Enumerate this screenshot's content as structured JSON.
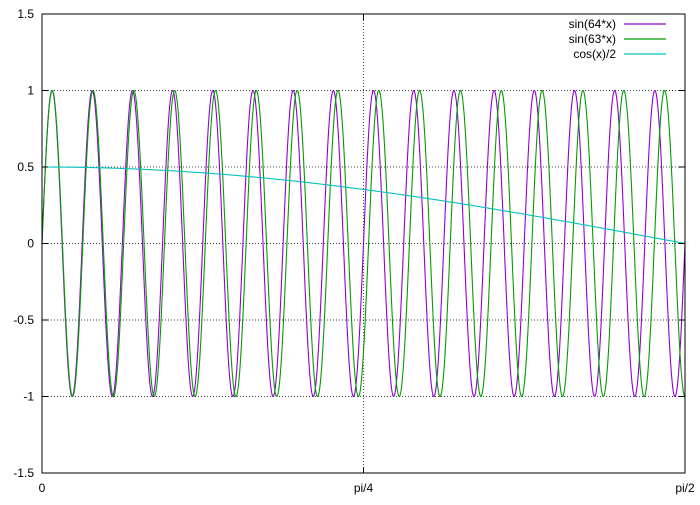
{
  "chart_data": {
    "type": "line",
    "title": "",
    "xlabel": "",
    "ylabel": "",
    "xlim": [
      0,
      1.5707963267948966
    ],
    "ylim": [
      -1.5,
      1.5
    ],
    "x_ticks": [
      {
        "value": 0,
        "label": "0"
      },
      {
        "value": 0.7853981633974483,
        "label": "pi/4"
      },
      {
        "value": 1.5707963267948966,
        "label": "pi/2"
      }
    ],
    "y_ticks": [
      {
        "value": -1.5,
        "label": "-1.5"
      },
      {
        "value": -1,
        "label": "-1"
      },
      {
        "value": -0.5,
        "label": "-0.5"
      },
      {
        "value": 0,
        "label": "0"
      },
      {
        "value": 0.5,
        "label": "0.5"
      },
      {
        "value": 1,
        "label": "1"
      },
      {
        "value": 1.5,
        "label": "1.5"
      }
    ],
    "grid": {
      "x_values": [
        0.7853981633974483
      ],
      "y_values": [
        -1,
        -0.5,
        0,
        0.5,
        1
      ],
      "style": "dotted"
    },
    "legend": {
      "position": "top-right"
    },
    "series": [
      {
        "name": "sin(64*x)",
        "expression": "sin(64*x)",
        "color": "#9400d3"
      },
      {
        "name": "sin(63*x)",
        "expression": "sin(63*x)",
        "color": "#009e00"
      },
      {
        "name": "cos(x)/2",
        "expression": "cos(x)/2",
        "color": "#00c0c0"
      }
    ]
  }
}
